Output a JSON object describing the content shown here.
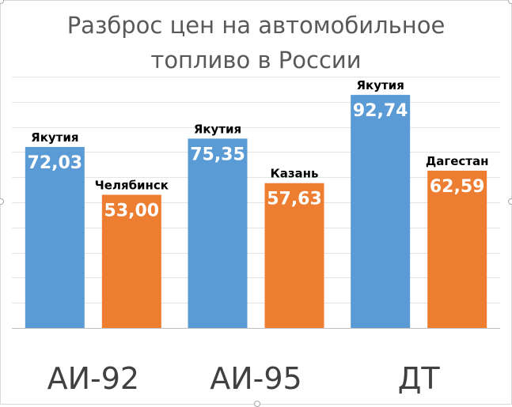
{
  "chart_data": {
    "type": "bar",
    "title": "Разброс цен на автомобильное топливо в России",
    "title_lines": [
      "Разброс цен на автомобильное",
      "топливо в России"
    ],
    "categories": [
      "АИ-92",
      "АИ-95",
      "ДТ"
    ],
    "ylim": [
      0,
      100
    ],
    "grid": true,
    "series": [
      {
        "color": "#5b9bd5",
        "values": [
          72.03,
          75.35,
          92.74
        ],
        "value_labels": [
          "72,03",
          "75,35",
          "92,74"
        ],
        "region_labels": [
          "Якутия",
          "Якутия",
          "Якутия"
        ]
      },
      {
        "color": "#ed7d31",
        "values": [
          53.0,
          57.63,
          62.59
        ],
        "value_labels": [
          "53,00",
          "57,63",
          "62,59"
        ],
        "region_labels": [
          "Челябинск",
          "Казань",
          "Дагестан"
        ]
      }
    ]
  }
}
